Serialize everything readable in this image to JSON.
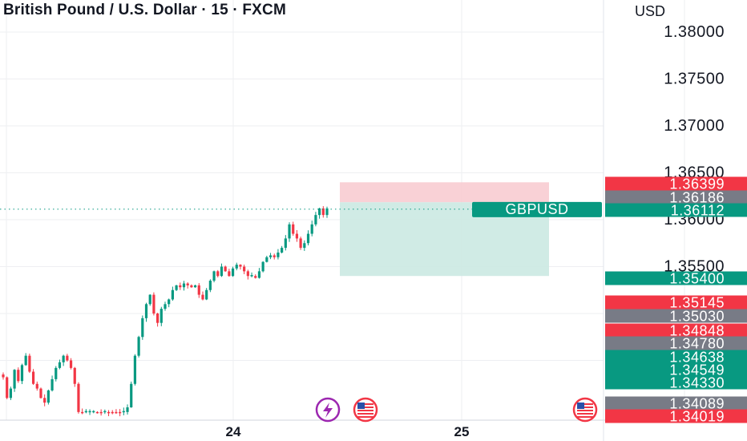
{
  "header": {
    "title": "British Pound / U.S. Dollar · 15 · FXCM",
    "currency": "USD"
  },
  "chart_data": {
    "type": "candlestick",
    "symbol": "GBPUSD",
    "ylim": [
      1.3393,
      1.3815
    ],
    "y_ticks": [
      "1.38000",
      "1.37500",
      "1.37000",
      "1.36500",
      "1.36000",
      "1.35500"
    ],
    "x_ticks": [
      "24",
      "25"
    ],
    "grid": true,
    "current_price": 1.36112,
    "symbol_tag": "GBPUSD",
    "position_box": {
      "entry": 1.36186,
      "stop": 1.36399,
      "target": 1.354
    },
    "price_labels": [
      {
        "value": "1.36399",
        "color": "#f23645"
      },
      {
        "value": "1.36186",
        "color": "#787b86"
      },
      {
        "value": "1.36112",
        "color": "#089981"
      },
      {
        "value": "1.35400",
        "color": "#089981"
      },
      {
        "value": "1.35145",
        "color": "#f23645"
      },
      {
        "value": "1.35030",
        "color": "#787b86"
      },
      {
        "value": "1.34848",
        "color": "#f23645"
      },
      {
        "value": "1.34780",
        "color": "#787b86"
      },
      {
        "value": "1.34638",
        "color": "#089981"
      },
      {
        "value": "1.34549",
        "color": "#089981"
      },
      {
        "value": "1.34330",
        "color": "#089981"
      },
      {
        "value": "1.34089",
        "color": "#787b86"
      },
      {
        "value": "1.34019",
        "color": "#f23645"
      }
    ],
    "candles_path": [
      1.3432,
      1.341,
      1.342,
      1.344,
      1.3428,
      1.3445,
      1.3455,
      1.3438,
      1.3425,
      1.342,
      1.341,
      1.3405,
      1.3418,
      1.343,
      1.3442,
      1.3448,
      1.3455,
      1.345,
      1.3442,
      1.3425,
      1.3395,
      1.3395,
      1.3395,
      1.3395,
      1.3395,
      1.3395,
      1.3395,
      1.3395,
      1.3395,
      1.3395,
      1.3395,
      1.3395,
      1.3395,
      1.34,
      1.3425,
      1.3455,
      1.3475,
      1.3495,
      1.351,
      1.352,
      1.35,
      1.349,
      1.3505,
      1.351,
      1.3515,
      1.3525,
      1.353,
      1.3528,
      1.3532,
      1.353,
      1.3528,
      1.353,
      1.352,
      1.3515,
      1.3525,
      1.3535,
      1.3545,
      1.354,
      1.355,
      1.3545,
      1.354,
      1.3548,
      1.3552,
      1.355,
      1.3545,
      1.354,
      1.354,
      1.3538,
      1.3545,
      1.3555,
      1.356,
      1.3562,
      1.356,
      1.3565,
      1.357,
      1.358,
      1.3595,
      1.3585,
      1.358,
      1.357,
      1.3575,
      1.3585,
      1.3595,
      1.3605,
      1.3612,
      1.3605,
      1.3612
    ],
    "colors": {
      "up": "#089981",
      "down": "#f23645",
      "stop_zone": "#f7c6cc",
      "target_zone": "#cbe9e2",
      "grid": "#eeeff2"
    },
    "icons": [
      "lightning-icon",
      "us-flag-icon",
      "us-flag-icon"
    ]
  }
}
